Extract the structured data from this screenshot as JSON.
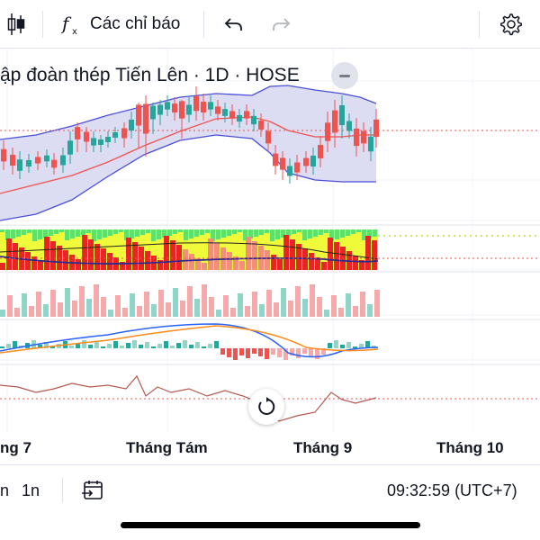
{
  "toolbar": {
    "candle_icon": "candlestick-icon",
    "indicators_label": "Các chỉ báo",
    "undo_icon": "undo-icon",
    "redo_icon": "redo-icon",
    "settings_icon": "gear-icon"
  },
  "chart": {
    "title": "ập đoàn thép Tiến Lên · 1D · HOSE",
    "months": [
      "ng 7",
      "Tháng Tám",
      "Tháng 9",
      "Tháng 10"
    ],
    "colors": {
      "up": "#26a69a",
      "down": "#ef5350",
      "bb_band": "#4a4fd8",
      "bb_fill": "#dcdcf3",
      "basis": "#ef5350",
      "yellow_fill": "#eefa3a",
      "green_fill": "#5ee06a",
      "red_bar": "#e82525",
      "macd_line": "#2962ff",
      "signal_line": "#ff8a1c",
      "rsi_line": "#b55a4f"
    }
  },
  "bottom": {
    "interval_a": "n",
    "interval_b": "1n",
    "goto_icon": "calendar-goto-icon",
    "time": "09:32:59 (UTC+7)"
  }
}
